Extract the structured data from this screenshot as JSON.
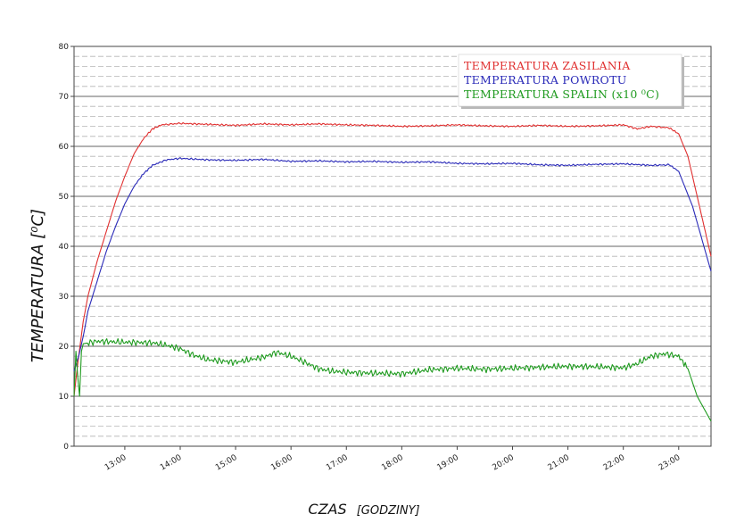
{
  "chart_data": {
    "type": "line",
    "xlabel": "CZAS",
    "xlabel_unit": "[GODZINY]",
    "ylabel": "TEMPERATURA [⁰C]",
    "ylim": [
      0,
      80
    ],
    "yticks": [
      0,
      10,
      20,
      30,
      40,
      50,
      60,
      70,
      80
    ],
    "xlim": [
      "12:05",
      "23:35"
    ],
    "xticks": [
      "13:00",
      "14:00",
      "15:00",
      "16:00",
      "17:00",
      "18:00",
      "19:00",
      "20:00",
      "21:00",
      "22:00",
      "23:00"
    ],
    "grid": true,
    "legend_position": "top-right",
    "series": [
      {
        "name": "TEMPERATURA ZASILANIA",
        "color": "#e03030",
        "points": [
          [
            "12:05",
            10
          ],
          [
            "12:10",
            18
          ],
          [
            "12:15",
            25
          ],
          [
            "12:20",
            30
          ],
          [
            "12:30",
            37
          ],
          [
            "12:40",
            43
          ],
          [
            "12:50",
            49
          ],
          [
            "13:00",
            54
          ],
          [
            "13:10",
            58.5
          ],
          [
            "13:20",
            61.5
          ],
          [
            "13:30",
            63.5
          ],
          [
            "13:40",
            64.3
          ],
          [
            "14:00",
            64.6
          ],
          [
            "14:30",
            64.4
          ],
          [
            "15:00",
            64.2
          ],
          [
            "15:30",
            64.5
          ],
          [
            "16:00",
            64.3
          ],
          [
            "16:30",
            64.5
          ],
          [
            "17:00",
            64.3
          ],
          [
            "17:30",
            64.2
          ],
          [
            "18:00",
            64.0
          ],
          [
            "18:30",
            64.1
          ],
          [
            "19:00",
            64.3
          ],
          [
            "19:30",
            64.1
          ],
          [
            "20:00",
            64.0
          ],
          [
            "20:30",
            64.2
          ],
          [
            "21:00",
            64.0
          ],
          [
            "21:30",
            64.1
          ],
          [
            "22:00",
            64.3
          ],
          [
            "22:15",
            63.5
          ],
          [
            "22:30",
            64.0
          ],
          [
            "22:50",
            63.7
          ],
          [
            "23:00",
            62.5
          ],
          [
            "23:10",
            58
          ],
          [
            "23:20",
            50
          ],
          [
            "23:35",
            38
          ]
        ]
      },
      {
        "name": "TEMPERATURA POWROTU",
        "color": "#2a2ab8",
        "points": [
          [
            "12:05",
            15
          ],
          [
            "12:10",
            18
          ],
          [
            "12:15",
            22
          ],
          [
            "12:20",
            27
          ],
          [
            "12:30",
            33
          ],
          [
            "12:40",
            39
          ],
          [
            "12:50",
            44
          ],
          [
            "13:00",
            48.5
          ],
          [
            "13:10",
            52
          ],
          [
            "13:20",
            54.5
          ],
          [
            "13:30",
            56.2
          ],
          [
            "13:45",
            57.3
          ],
          [
            "14:00",
            57.6
          ],
          [
            "14:30",
            57.3
          ],
          [
            "15:00",
            57.2
          ],
          [
            "15:30",
            57.4
          ],
          [
            "16:00",
            57.0
          ],
          [
            "16:30",
            57.1
          ],
          [
            "17:00",
            56.9
          ],
          [
            "17:30",
            57.0
          ],
          [
            "18:00",
            56.8
          ],
          [
            "18:30",
            56.9
          ],
          [
            "19:00",
            56.6
          ],
          [
            "19:30",
            56.5
          ],
          [
            "20:00",
            56.6
          ],
          [
            "20:30",
            56.3
          ],
          [
            "21:00",
            56.2
          ],
          [
            "21:30",
            56.4
          ],
          [
            "22:00",
            56.5
          ],
          [
            "22:30",
            56.2
          ],
          [
            "22:50",
            56.3
          ],
          [
            "23:00",
            55
          ],
          [
            "23:15",
            48
          ],
          [
            "23:35",
            35
          ]
        ]
      },
      {
        "name": "TEMPERATURA SPALIN (x10 ⁰C)",
        "color": "#1e9a1e",
        "points": [
          [
            "12:05",
            10
          ],
          [
            "12:07",
            19
          ],
          [
            "12:09",
            14
          ],
          [
            "12:11",
            10
          ],
          [
            "12:13",
            19
          ],
          [
            "12:15",
            20.5
          ],
          [
            "12:30",
            21
          ],
          [
            "13:00",
            20.8
          ],
          [
            "13:30",
            20.7
          ],
          [
            "13:45",
            20.2
          ],
          [
            "14:00",
            19.5
          ],
          [
            "14:15",
            18.2
          ],
          [
            "14:30",
            17.3
          ],
          [
            "15:00",
            16.8
          ],
          [
            "15:30",
            17.8
          ],
          [
            "15:45",
            18.8
          ],
          [
            "16:00",
            18.0
          ],
          [
            "16:15",
            16.8
          ],
          [
            "16:30",
            15.5
          ],
          [
            "16:45",
            15.0
          ],
          [
            "17:00",
            14.8
          ],
          [
            "17:30",
            14.6
          ],
          [
            "18:00",
            14.5
          ],
          [
            "18:30",
            15.3
          ],
          [
            "19:00",
            15.6
          ],
          [
            "19:30",
            15.4
          ],
          [
            "20:00",
            15.6
          ],
          [
            "20:30",
            15.8
          ],
          [
            "21:00",
            16.0
          ],
          [
            "21:30",
            15.9
          ],
          [
            "22:00",
            15.7
          ],
          [
            "22:15",
            16.5
          ],
          [
            "22:30",
            18.0
          ],
          [
            "22:45",
            18.5
          ],
          [
            "23:00",
            18.0
          ],
          [
            "23:10",
            15.5
          ],
          [
            "23:20",
            10
          ],
          [
            "23:35",
            5
          ]
        ]
      }
    ]
  }
}
